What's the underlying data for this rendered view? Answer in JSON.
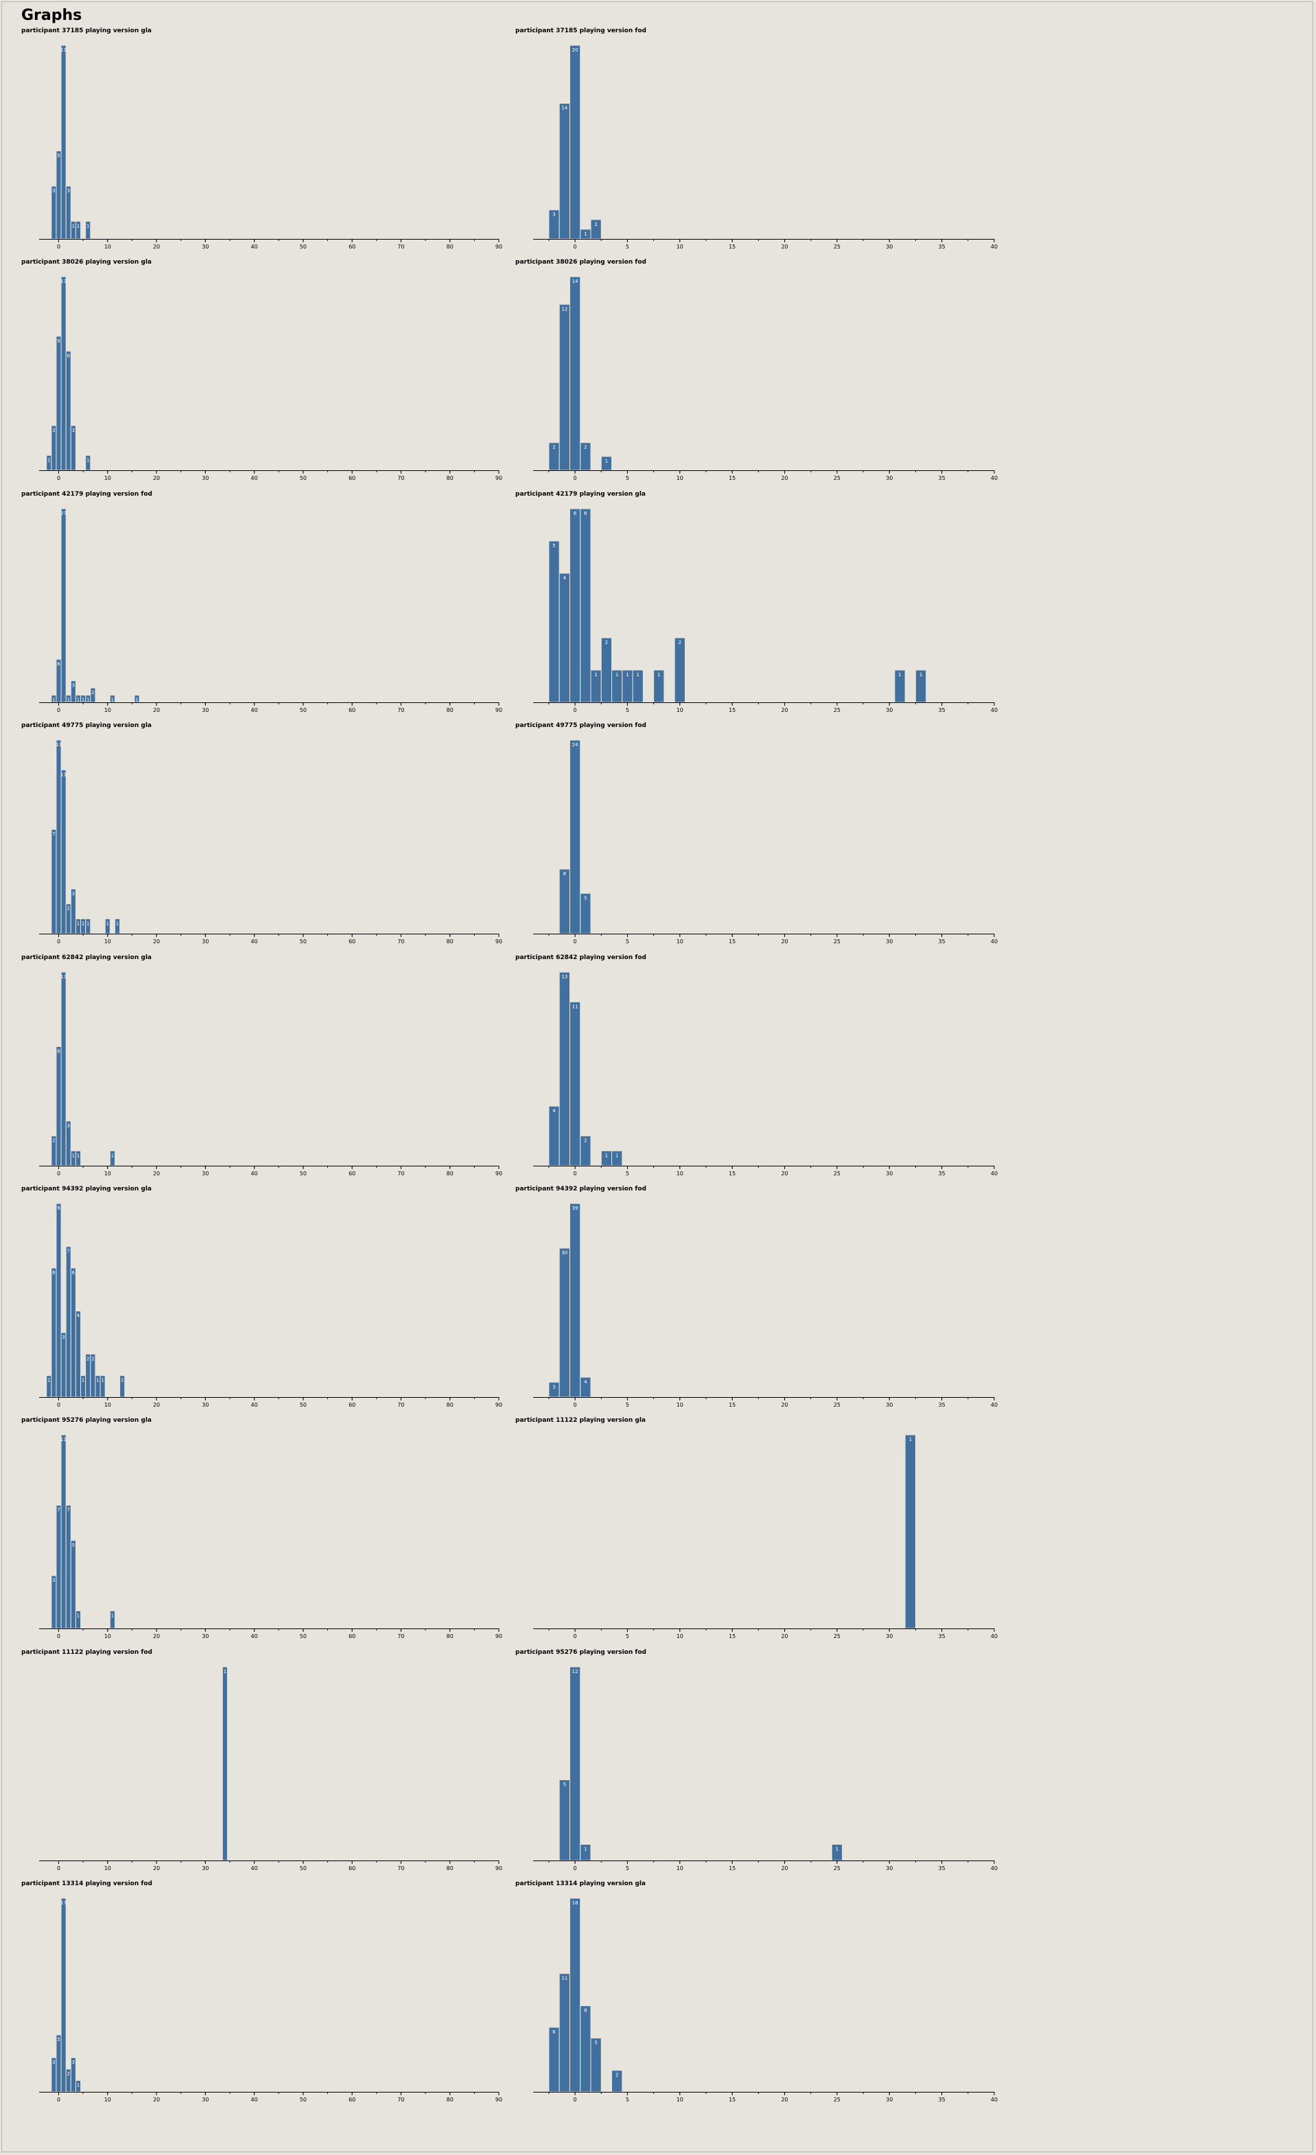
{
  "page": {
    "title": "Graphs",
    "bar_color": "#41709e",
    "background": "#e7e4de"
  },
  "chart_data": [
    {
      "type": "bar",
      "title": "participant 37185 playing version gla",
      "xlim": [
        -4,
        90
      ],
      "ticks": [
        0,
        10,
        20,
        30,
        40,
        50,
        60,
        70,
        80,
        90
      ],
      "x": [
        -1,
        0,
        1,
        2,
        3,
        4,
        6
      ],
      "values": [
        3,
        5,
        11,
        3,
        1,
        1,
        1
      ],
      "show_labels": false
    },
    {
      "type": "bar",
      "title": "participant 37185 playing version fod",
      "xlim": [
        -4,
        40
      ],
      "ticks": [
        0,
        5,
        10,
        15,
        20,
        25,
        30,
        35,
        40
      ],
      "x": [
        -2,
        -1,
        0,
        1,
        2
      ],
      "values": [
        3,
        14,
        20,
        1,
        2
      ],
      "show_labels": true
    },
    {
      "type": "bar",
      "title": "participant 38026 playing version gla",
      "xlim": [
        -4,
        90
      ],
      "ticks": [
        0,
        10,
        20,
        30,
        40,
        50,
        60,
        70,
        80,
        90
      ],
      "x": [
        -2,
        -1,
        0,
        1,
        2,
        3,
        6
      ],
      "values": [
        1,
        3,
        9,
        13,
        8,
        3,
        1
      ],
      "show_labels": false
    },
    {
      "type": "bar",
      "title": "participant 38026 playing version fod",
      "xlim": [
        -4,
        40
      ],
      "ticks": [
        0,
        5,
        10,
        15,
        20,
        25,
        30,
        35,
        40
      ],
      "x": [
        -2,
        -1,
        0,
        1,
        3
      ],
      "values": [
        2,
        12,
        14,
        2,
        1
      ],
      "show_labels": true
    },
    {
      "type": "bar",
      "title": "participant 42179 playing version fod",
      "xlim": [
        -4,
        90
      ],
      "ticks": [
        0,
        10,
        20,
        30,
        40,
        50,
        60,
        70,
        80,
        90
      ],
      "x": [
        -1,
        0,
        1,
        2,
        3,
        4,
        5,
        6,
        7,
        11,
        16
      ],
      "values": [
        1,
        6,
        27,
        1,
        3,
        1,
        1,
        1,
        2,
        1,
        1
      ],
      "show_labels": false
    },
    {
      "type": "bar",
      "title": "participant 42179 playing version gla",
      "xlim": [
        -4,
        40
      ],
      "ticks": [
        0,
        5,
        10,
        15,
        20,
        25,
        30,
        35,
        40
      ],
      "x": [
        -2,
        -1,
        0,
        1,
        2,
        3,
        4,
        5,
        6,
        8,
        10,
        31,
        33
      ],
      "values": [
        5,
        4,
        6,
        6,
        1,
        2,
        1,
        1,
        1,
        1,
        2,
        1,
        1
      ],
      "show_labels": true
    },
    {
      "type": "bar",
      "title": "participant 49775 playing version gla",
      "xlim": [
        -4,
        90
      ],
      "ticks": [
        0,
        10,
        20,
        30,
        40,
        50,
        60,
        70,
        80,
        90
      ],
      "x": [
        -1,
        0,
        1,
        2,
        3,
        4,
        5,
        6,
        10,
        12
      ],
      "values": [
        7,
        13,
        11,
        2,
        3,
        1,
        1,
        1,
        1,
        1
      ],
      "show_labels": false
    },
    {
      "type": "bar",
      "title": "participant 49775 playing version fod",
      "xlim": [
        -4,
        40
      ],
      "ticks": [
        0,
        5,
        10,
        15,
        20,
        25,
        30,
        35,
        40
      ],
      "x": [
        -1,
        0,
        1
      ],
      "values": [
        8,
        24,
        5
      ],
      "show_labels": true
    },
    {
      "type": "bar",
      "title": "participant 62842 playing version gla",
      "xlim": [
        -4,
        90
      ],
      "ticks": [
        0,
        10,
        20,
        30,
        40,
        50,
        60,
        70,
        80,
        90
      ],
      "x": [
        -1,
        0,
        1,
        2,
        3,
        4,
        11
      ],
      "values": [
        2,
        8,
        13,
        3,
        1,
        1,
        1
      ],
      "show_labels": false
    },
    {
      "type": "bar",
      "title": "participant 62842 playing version fod",
      "xlim": [
        -4,
        40
      ],
      "ticks": [
        0,
        5,
        10,
        15,
        20,
        25,
        30,
        35,
        40
      ],
      "x": [
        -2,
        -1,
        0,
        1,
        3,
        4
      ],
      "values": [
        4,
        13,
        11,
        2,
        1,
        1
      ],
      "show_labels": true
    },
    {
      "type": "bar",
      "title": "participant 94392 playing version gla",
      "xlim": [
        -4,
        90
      ],
      "ticks": [
        0,
        10,
        20,
        30,
        40,
        50,
        60,
        70,
        80,
        90
      ],
      "x": [
        -2,
        -1,
        0,
        1,
        2,
        3,
        4,
        5,
        6,
        7,
        8,
        9,
        13
      ],
      "values": [
        1,
        6,
        9,
        3,
        7,
        6,
        4,
        1,
        2,
        2,
        1,
        1,
        1
      ],
      "show_labels": false
    },
    {
      "type": "bar",
      "title": "participant 94392 playing version fod",
      "xlim": [
        -4,
        40
      ],
      "ticks": [
        0,
        5,
        10,
        15,
        20,
        25,
        30,
        35,
        40
      ],
      "x": [
        -2,
        -1,
        0,
        1
      ],
      "values": [
        3,
        30,
        39,
        4
      ],
      "show_labels": true
    },
    {
      "type": "bar",
      "title": "participant 95276 playing version gla",
      "xlim": [
        -4,
        90
      ],
      "ticks": [
        0,
        10,
        20,
        30,
        40,
        50,
        60,
        70,
        80,
        90
      ],
      "x": [
        -1,
        0,
        1,
        2,
        3,
        4,
        11
      ],
      "values": [
        3,
        7,
        11,
        7,
        5,
        1,
        1
      ],
      "show_labels": false
    },
    {
      "type": "bar",
      "title": "participant 11122 playing version gla",
      "xlim": [
        -4,
        40
      ],
      "ticks": [
        0,
        5,
        10,
        15,
        20,
        25,
        30,
        35,
        40
      ],
      "x": [
        32
      ],
      "values": [
        1
      ],
      "show_labels": true
    },
    {
      "type": "bar",
      "title": "participant 11122 playing version fod",
      "xlim": [
        -4,
        90
      ],
      "ticks": [
        0,
        10,
        20,
        30,
        40,
        50,
        60,
        70,
        80,
        90
      ],
      "x": [
        34
      ],
      "values": [
        1
      ],
      "show_labels": false
    },
    {
      "type": "bar",
      "title": "participant 95276 playing version fod",
      "xlim": [
        -4,
        40
      ],
      "ticks": [
        0,
        5,
        10,
        15,
        20,
        25,
        30,
        35,
        40
      ],
      "x": [
        -1,
        0,
        1,
        25
      ],
      "values": [
        5,
        12,
        1,
        1
      ],
      "show_labels": true
    },
    {
      "type": "bar",
      "title": "participant 13314 playing version fod",
      "xlim": [
        -4,
        90
      ],
      "ticks": [
        0,
        10,
        20,
        30,
        40,
        50,
        60,
        70,
        80,
        90
      ],
      "x": [
        -1,
        0,
        1,
        2,
        3,
        4
      ],
      "values": [
        3,
        5,
        17,
        2,
        3,
        1
      ],
      "show_labels": false
    },
    {
      "type": "bar",
      "title": "participant 13314 playing version gla",
      "xlim": [
        -4,
        40
      ],
      "ticks": [
        0,
        5,
        10,
        15,
        20,
        25,
        30,
        35,
        40
      ],
      "x": [
        -2,
        -1,
        0,
        1,
        2,
        4
      ],
      "values": [
        6,
        11,
        18,
        8,
        5,
        2
      ],
      "show_labels": true
    }
  ]
}
